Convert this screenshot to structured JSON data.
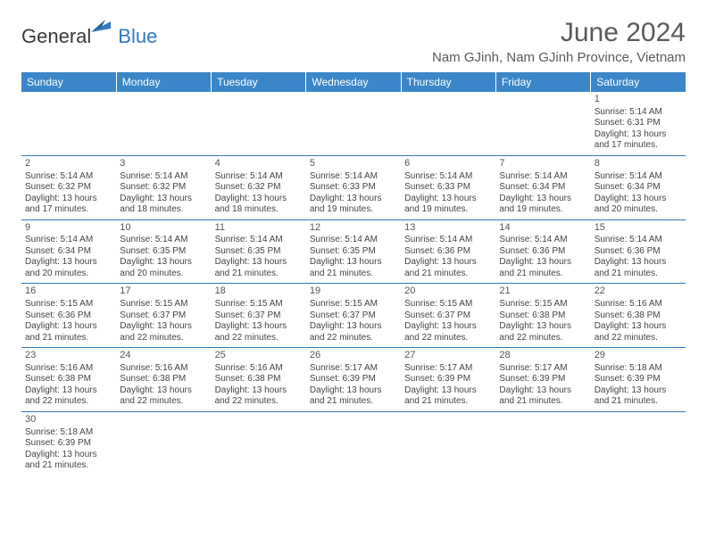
{
  "brand": {
    "text1": "General",
    "text2": "Blue"
  },
  "title": "June 2024",
  "location": "Nam GJinh, Nam GJinh Province, Vietnam",
  "colors": {
    "header_bg": "#3a86c8",
    "header_text": "#ffffff",
    "border": "#2f7bbf",
    "body_text": "#444444",
    "title_text": "#5a5a5a",
    "brand_blue": "#2f7bbf"
  },
  "weekdays": [
    "Sunday",
    "Monday",
    "Tuesday",
    "Wednesday",
    "Thursday",
    "Friday",
    "Saturday"
  ],
  "weeks": [
    [
      null,
      null,
      null,
      null,
      null,
      null,
      {
        "d": "1",
        "sr": "5:14 AM",
        "ss": "6:31 PM",
        "dl": "13 hours and 17 minutes."
      }
    ],
    [
      {
        "d": "2",
        "sr": "5:14 AM",
        "ss": "6:32 PM",
        "dl": "13 hours and 17 minutes."
      },
      {
        "d": "3",
        "sr": "5:14 AM",
        "ss": "6:32 PM",
        "dl": "13 hours and 18 minutes."
      },
      {
        "d": "4",
        "sr": "5:14 AM",
        "ss": "6:32 PM",
        "dl": "13 hours and 18 minutes."
      },
      {
        "d": "5",
        "sr": "5:14 AM",
        "ss": "6:33 PM",
        "dl": "13 hours and 19 minutes."
      },
      {
        "d": "6",
        "sr": "5:14 AM",
        "ss": "6:33 PM",
        "dl": "13 hours and 19 minutes."
      },
      {
        "d": "7",
        "sr": "5:14 AM",
        "ss": "6:34 PM",
        "dl": "13 hours and 19 minutes."
      },
      {
        "d": "8",
        "sr": "5:14 AM",
        "ss": "6:34 PM",
        "dl": "13 hours and 20 minutes."
      }
    ],
    [
      {
        "d": "9",
        "sr": "5:14 AM",
        "ss": "6:34 PM",
        "dl": "13 hours and 20 minutes."
      },
      {
        "d": "10",
        "sr": "5:14 AM",
        "ss": "6:35 PM",
        "dl": "13 hours and 20 minutes."
      },
      {
        "d": "11",
        "sr": "5:14 AM",
        "ss": "6:35 PM",
        "dl": "13 hours and 21 minutes."
      },
      {
        "d": "12",
        "sr": "5:14 AM",
        "ss": "6:35 PM",
        "dl": "13 hours and 21 minutes."
      },
      {
        "d": "13",
        "sr": "5:14 AM",
        "ss": "6:36 PM",
        "dl": "13 hours and 21 minutes."
      },
      {
        "d": "14",
        "sr": "5:14 AM",
        "ss": "6:36 PM",
        "dl": "13 hours and 21 minutes."
      },
      {
        "d": "15",
        "sr": "5:14 AM",
        "ss": "6:36 PM",
        "dl": "13 hours and 21 minutes."
      }
    ],
    [
      {
        "d": "16",
        "sr": "5:15 AM",
        "ss": "6:36 PM",
        "dl": "13 hours and 21 minutes."
      },
      {
        "d": "17",
        "sr": "5:15 AM",
        "ss": "6:37 PM",
        "dl": "13 hours and 22 minutes."
      },
      {
        "d": "18",
        "sr": "5:15 AM",
        "ss": "6:37 PM",
        "dl": "13 hours and 22 minutes."
      },
      {
        "d": "19",
        "sr": "5:15 AM",
        "ss": "6:37 PM",
        "dl": "13 hours and 22 minutes."
      },
      {
        "d": "20",
        "sr": "5:15 AM",
        "ss": "6:37 PM",
        "dl": "13 hours and 22 minutes."
      },
      {
        "d": "21",
        "sr": "5:15 AM",
        "ss": "6:38 PM",
        "dl": "13 hours and 22 minutes."
      },
      {
        "d": "22",
        "sr": "5:16 AM",
        "ss": "6:38 PM",
        "dl": "13 hours and 22 minutes."
      }
    ],
    [
      {
        "d": "23",
        "sr": "5:16 AM",
        "ss": "6:38 PM",
        "dl": "13 hours and 22 minutes."
      },
      {
        "d": "24",
        "sr": "5:16 AM",
        "ss": "6:38 PM",
        "dl": "13 hours and 22 minutes."
      },
      {
        "d": "25",
        "sr": "5:16 AM",
        "ss": "6:38 PM",
        "dl": "13 hours and 22 minutes."
      },
      {
        "d": "26",
        "sr": "5:17 AM",
        "ss": "6:39 PM",
        "dl": "13 hours and 21 minutes."
      },
      {
        "d": "27",
        "sr": "5:17 AM",
        "ss": "6:39 PM",
        "dl": "13 hours and 21 minutes."
      },
      {
        "d": "28",
        "sr": "5:17 AM",
        "ss": "6:39 PM",
        "dl": "13 hours and 21 minutes."
      },
      {
        "d": "29",
        "sr": "5:18 AM",
        "ss": "6:39 PM",
        "dl": "13 hours and 21 minutes."
      }
    ],
    [
      {
        "d": "30",
        "sr": "5:18 AM",
        "ss": "6:39 PM",
        "dl": "13 hours and 21 minutes."
      },
      null,
      null,
      null,
      null,
      null,
      null
    ]
  ],
  "labels": {
    "sunrise": "Sunrise:",
    "sunset": "Sunset:",
    "daylight": "Daylight:"
  }
}
